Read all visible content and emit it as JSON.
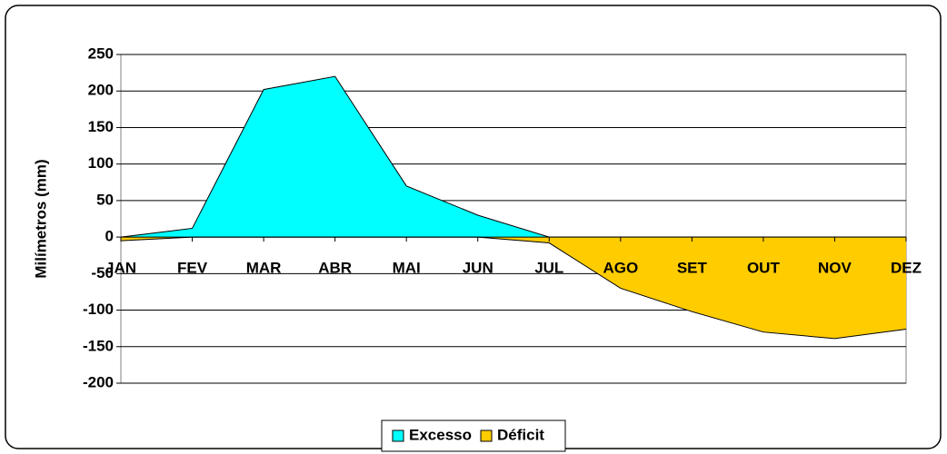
{
  "chart_data": {
    "type": "area",
    "y_label": "Milímetros (mm)",
    "categories": [
      "JAN",
      "FEV",
      "MAR",
      "ABR",
      "MAI",
      "JUN",
      "JUL",
      "AGO",
      "SET",
      "OUT",
      "NOV",
      "DEZ"
    ],
    "series": [
      {
        "name": "Excesso",
        "color": "#00ffff",
        "values": [
          0,
          12,
          202,
          220,
          70,
          30,
          0,
          0,
          0,
          0,
          0,
          0
        ]
      },
      {
        "name": "Déficit",
        "color": "#ffcc00",
        "values": [
          -5,
          0,
          0,
          0,
          0,
          0,
          -8,
          -70,
          -102,
          -130,
          -139,
          -126
        ]
      }
    ],
    "ylim": [
      -200,
      250
    ],
    "yticks": [
      -200,
      -150,
      -100,
      -50,
      0,
      50,
      100,
      150,
      200,
      250
    ],
    "grid": true,
    "legend": "bottom"
  }
}
